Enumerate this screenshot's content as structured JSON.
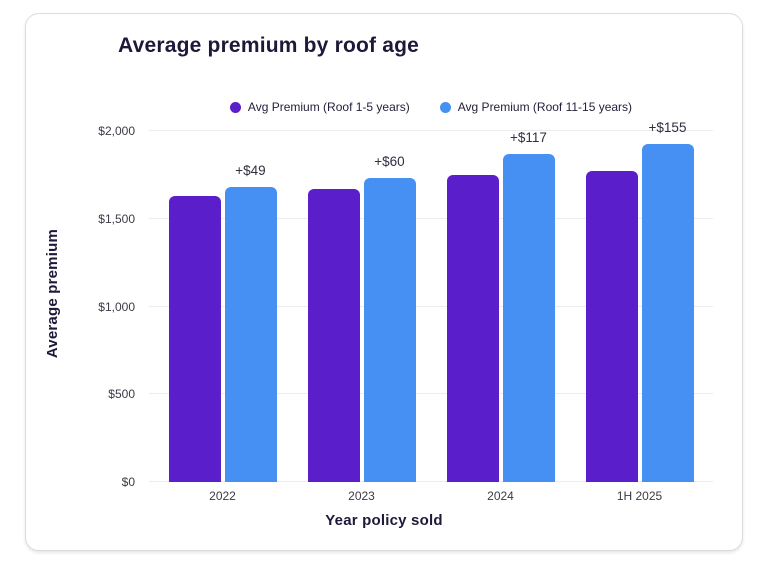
{
  "card": {
    "title": "Average premium by roof age"
  },
  "axes": {
    "y_ticks": [
      {
        "label": "$2,000",
        "value": 2000
      },
      {
        "label": "$1,500",
        "value": 1500
      },
      {
        "label": "$1,000",
        "value": 1000
      },
      {
        "label": "$500",
        "value": 500
      },
      {
        "label": "$0",
        "value": 0
      }
    ]
  },
  "colors": {
    "purple": "#5a1fcb",
    "blue": "#4590f2",
    "dark_text": "#1f1839",
    "grid": "#ececec"
  },
  "chart_data": {
    "type": "bar",
    "title": "Average premium by roof age",
    "xlabel": "Year policy sold",
    "ylabel": "Average premium",
    "categories": [
      "2022",
      "2023",
      "2024",
      "1H 2025"
    ],
    "series": [
      {
        "name": "Avg Premium (Roof 1-5 years)",
        "color": "#5a1fcb",
        "values": [
          1630,
          1670,
          1752,
          1772
        ]
      },
      {
        "name": "Avg Premium (Roof 11-15 years)",
        "color": "#4590f2",
        "values": [
          1679,
          1730,
          1869,
          1927
        ]
      }
    ],
    "annotations": [
      {
        "category": "2022",
        "text": "+$49"
      },
      {
        "category": "2023",
        "text": "+$60"
      },
      {
        "category": "2024",
        "text": "+$117"
      },
      {
        "category": "1H 2025",
        "text": "+$155"
      }
    ],
    "ylim": [
      0,
      2000
    ],
    "y_tick_step": 500,
    "grid": true,
    "legend_position": "top"
  }
}
